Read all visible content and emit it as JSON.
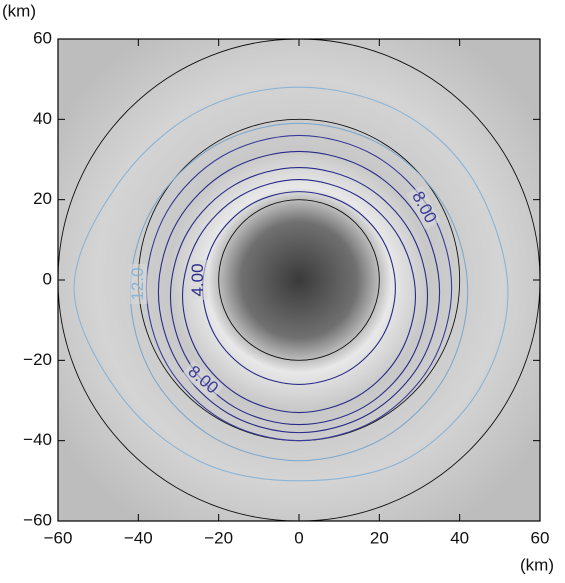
{
  "chart_data": {
    "type": "contour",
    "xlabel": "(km)",
    "ylabel": "(km)",
    "xlim": [
      -60,
      60
    ],
    "ylim": [
      -60,
      60
    ],
    "xticks": [
      {
        "value": -60,
        "label": "−60"
      },
      {
        "value": -40,
        "label": "−40"
      },
      {
        "value": -20,
        "label": "−20"
      },
      0,
      20,
      40,
      60
    ],
    "yticks": [
      {
        "value": -60,
        "label": "−60"
      },
      {
        "value": -40,
        "label": "−40"
      },
      {
        "value": -20,
        "label": "−20"
      },
      0,
      20,
      40,
      60
    ],
    "reference_circles": [
      20,
      40,
      60
    ],
    "contours": [
      {
        "level": 4,
        "label": "4.00",
        "color": "#2a2a8a",
        "x": [
          24,
          20.8,
          12,
          0,
          -12,
          -20.8,
          -24,
          -20.8,
          -12,
          0,
          12,
          20.8
        ],
        "y": [
          -2,
          10,
          18.8,
          22,
          18.8,
          10,
          -2,
          -14,
          -22.8,
          -26,
          -22.8,
          -14
        ]
      },
      {
        "level": 5,
        "color": "#2a2a8a",
        "x": [
          29,
          25,
          14.5,
          0,
          -14.5,
          -25,
          -29,
          -25,
          -14.5,
          0,
          14.5,
          25
        ],
        "y": [
          -4,
          10.5,
          21,
          25,
          21,
          10.5,
          -4,
          -18.5,
          -29,
          -33,
          -29,
          -18.5
        ]
      },
      {
        "level": 6,
        "color": "#2a2a8a",
        "x": [
          32,
          27.7,
          16,
          0,
          -16,
          -27.7,
          -32,
          -27.7,
          -16,
          0,
          16,
          27.7
        ],
        "y": [
          -4,
          12,
          23.7,
          28,
          23.7,
          12,
          -4,
          -20,
          -31.7,
          -36,
          -31.7,
          -20
        ]
      },
      {
        "level": 7,
        "color": "#2a2a8a",
        "x": [
          35,
          30.3,
          17.5,
          0,
          -17.5,
          -30.3,
          -35,
          -30.3,
          -17.5,
          0,
          17.5,
          30.3
        ],
        "y": [
          -3,
          14.5,
          27.3,
          32,
          27.3,
          14.5,
          -3,
          -20.5,
          -33.3,
          -38,
          -33.3,
          -20.5
        ]
      },
      {
        "level": 8,
        "label": "8.00",
        "color": "#3a3a9a",
        "x": [
          38,
          32.9,
          19,
          0,
          -19,
          -32.9,
          -38,
          -32.9,
          -19,
          0,
          19,
          32.9
        ],
        "y": [
          -2,
          17,
          30.9,
          36,
          30.9,
          17,
          -2,
          -21,
          -34.9,
          -40,
          -34.9,
          -21
        ]
      },
      {
        "level": 10,
        "color": "#7fa8cc",
        "x": [
          42,
          36.4,
          21,
          0,
          -21,
          -36.4,
          -42,
          -36.4,
          -21,
          0,
          21,
          36.4
        ],
        "y": [
          -3,
          18,
          33.4,
          39,
          33.4,
          18,
          -3,
          -24,
          -39.4,
          -45,
          -39.4,
          -24
        ]
      },
      {
        "level": 12,
        "label": "12.0",
        "color": "#8ab4d6",
        "x": [
          52,
          43.3,
          25,
          0,
          -25,
          -45,
          -56,
          -45,
          -25,
          0,
          26,
          45
        ],
        "y": [
          -2,
          25,
          42,
          48,
          42,
          24,
          -2,
          -28,
          -45,
          -50,
          -45,
          -27
        ]
      }
    ]
  }
}
